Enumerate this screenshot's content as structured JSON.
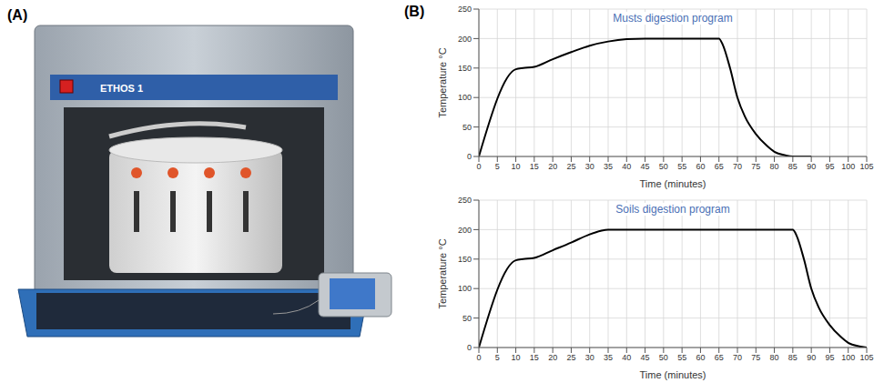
{
  "panel_a": {
    "label": "(A)",
    "text": "ETHOS 1"
  },
  "panel_b": {
    "label": "(B)"
  },
  "chart_data": [
    {
      "type": "line",
      "title": "Musts digestion program",
      "xlabel": "Time (minutes)",
      "ylabel": "Temperature °C",
      "x": [
        0,
        10,
        12,
        15,
        20,
        25,
        30,
        35,
        40,
        45,
        65,
        66,
        68,
        70,
        72,
        75,
        78,
        80,
        83,
        85,
        90
      ],
      "values": [
        0,
        148,
        150,
        152,
        165,
        177,
        188,
        195,
        199,
        200,
        200,
        190,
        150,
        100,
        68,
        38,
        18,
        8,
        2,
        0,
        0
      ],
      "color": "#000000",
      "xlim": [
        0,
        105
      ],
      "xticks": [
        0,
        5,
        10,
        15,
        20,
        25,
        30,
        35,
        40,
        45,
        50,
        55,
        60,
        65,
        70,
        75,
        80,
        85,
        90,
        95,
        100,
        105
      ],
      "ylim": [
        0,
        250
      ],
      "yticks": [
        0,
        50,
        100,
        150,
        200,
        250
      ],
      "grid": true
    },
    {
      "type": "line",
      "title": "Soils digestion program",
      "xlabel": "Time (minutes)",
      "ylabel": "Temperature °C",
      "x": [
        0,
        10,
        12,
        15,
        20,
        25,
        30,
        33,
        35,
        85,
        86,
        88,
        90,
        92,
        95,
        98,
        100,
        103,
        105
      ],
      "values": [
        0,
        148,
        150,
        152,
        165,
        178,
        192,
        198,
        200,
        200,
        190,
        150,
        100,
        68,
        38,
        18,
        8,
        2,
        0
      ],
      "color": "#000000",
      "xlim": [
        0,
        105
      ],
      "xticks": [
        0,
        5,
        10,
        15,
        20,
        25,
        30,
        35,
        40,
        45,
        50,
        55,
        60,
        65,
        70,
        75,
        80,
        85,
        90,
        95,
        100,
        105
      ],
      "ylim": [
        0,
        250
      ],
      "yticks": [
        0,
        50,
        100,
        150,
        200,
        250
      ],
      "grid": true
    }
  ]
}
